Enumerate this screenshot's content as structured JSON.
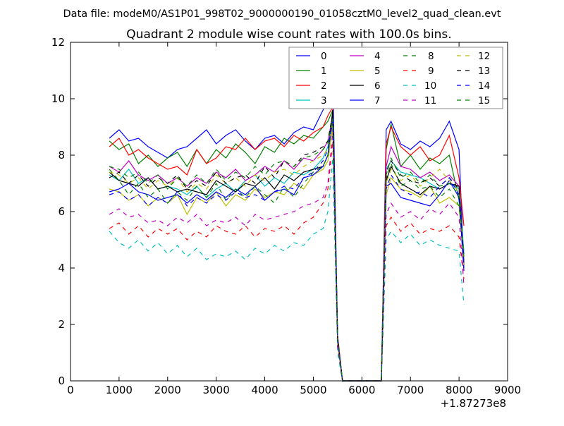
{
  "chart_data": {
    "type": "line",
    "suptitle": "Data file: modeM0/AS1P01_998T02_9000000190_01058cztM0_level2_quad_clean.evt",
    "title": "Quadrant 2 module wise count rates with 100.0s bins.",
    "xlabel": "",
    "ylabel": "",
    "x_offset_label": "+1.87273e8",
    "xlim": [
      0,
      9000
    ],
    "ylim": [
      0,
      12
    ],
    "xticks": [
      "0",
      "1000",
      "2000",
      "3000",
      "4000",
      "5000",
      "6000",
      "7000",
      "8000",
      "9000"
    ],
    "yticks": [
      "0",
      "2",
      "4",
      "6",
      "8",
      "10",
      "12"
    ],
    "grid": false,
    "legend_placement": "top-right",
    "legend_columns": 4,
    "x": [
      800,
      1000,
      1200,
      1400,
      1600,
      1800,
      2000,
      2200,
      2400,
      2600,
      2800,
      3000,
      3200,
      3400,
      3600,
      3800,
      4000,
      4200,
      4400,
      4600,
      4800,
      5000,
      5200,
      5300,
      5400,
      5500,
      5600,
      6300,
      6400,
      6500,
      6600,
      6800,
      7000,
      7200,
      7400,
      7600,
      7800,
      8000,
      8100
    ],
    "series": [
      {
        "name": "0",
        "color": "#0000ff",
        "style": "solid",
        "values": [
          8.6,
          8.9,
          8.5,
          8.6,
          8.3,
          8.1,
          7.9,
          8.2,
          8.3,
          8.6,
          8.9,
          8.4,
          8.7,
          8.9,
          8.5,
          8.2,
          8.6,
          8.7,
          8.4,
          8.8,
          9.0,
          8.9,
          9.6,
          10.0,
          10.8,
          1.6,
          0,
          0,
          0,
          8.9,
          9.2,
          8.4,
          8.2,
          8.5,
          8.3,
          8.6,
          9.2,
          8.2,
          4.0
        ]
      },
      {
        "name": "1",
        "color": "#008000",
        "style": "solid",
        "values": [
          8.5,
          8.2,
          8.4,
          7.7,
          8.0,
          7.6,
          7.9,
          8.1,
          7.6,
          8.2,
          7.7,
          8.2,
          7.9,
          8.4,
          8.1,
          7.7,
          8.3,
          8.1,
          8.6,
          8.4,
          8.7,
          8.6,
          9.0,
          9.2,
          9.6,
          1.5,
          0,
          0,
          0,
          8.2,
          9.1,
          7.6,
          8.0,
          7.5,
          7.9,
          7.7,
          8.0,
          6.4,
          4.5
        ]
      },
      {
        "name": "2",
        "color": "#ff0000",
        "style": "solid",
        "values": [
          8.3,
          8.6,
          8.0,
          8.2,
          7.9,
          7.7,
          7.5,
          7.6,
          7.3,
          8.2,
          7.7,
          7.9,
          8.3,
          8.2,
          8.6,
          8.2,
          8.5,
          8.6,
          8.3,
          8.7,
          8.5,
          8.8,
          9.0,
          9.4,
          9.7,
          1.6,
          0,
          0,
          0,
          8.4,
          9.0,
          8.3,
          8.0,
          8.3,
          7.8,
          8.0,
          8.7,
          7.2,
          5.5
        ]
      },
      {
        "name": "3",
        "color": "#00bfbf",
        "style": "solid",
        "values": [
          7.3,
          7.1,
          7.5,
          7.0,
          7.2,
          6.8,
          6.9,
          6.8,
          6.6,
          6.9,
          6.5,
          6.8,
          7.0,
          6.7,
          7.1,
          7.3,
          6.9,
          7.2,
          7.0,
          7.4,
          7.3,
          7.5,
          7.9,
          8.3,
          9.2,
          1.4,
          0,
          0,
          0,
          7.5,
          7.8,
          7.4,
          7.3,
          7.2,
          7.0,
          6.8,
          7.0,
          6.8,
          4.6
        ]
      },
      {
        "name": "4",
        "color": "#bf00bf",
        "style": "solid",
        "values": [
          7.6,
          7.4,
          7.8,
          7.3,
          7.1,
          7.3,
          7.0,
          7.2,
          6.9,
          7.2,
          7.0,
          7.4,
          7.2,
          7.5,
          7.1,
          7.3,
          7.6,
          7.4,
          7.8,
          7.5,
          7.9,
          7.8,
          8.2,
          8.5,
          9.4,
          1.5,
          0,
          0,
          0,
          7.6,
          8.3,
          7.6,
          7.5,
          7.2,
          7.4,
          7.1,
          7.3,
          6.9,
          4.3
        ]
      },
      {
        "name": "5",
        "color": "#bfbf00",
        "style": "solid",
        "values": [
          6.8,
          6.7,
          6.4,
          6.6,
          6.2,
          6.5,
          6.3,
          6.6,
          5.9,
          6.5,
          6.3,
          6.7,
          6.2,
          6.6,
          6.4,
          6.8,
          6.5,
          6.7,
          6.6,
          7.0,
          6.8,
          7.3,
          7.5,
          7.8,
          9.0,
          1.3,
          0,
          0,
          0,
          6.6,
          7.2,
          6.8,
          6.7,
          6.5,
          6.9,
          6.3,
          6.5,
          6.2,
          4.2
        ]
      },
      {
        "name": "6",
        "color": "#000000",
        "style": "solid",
        "values": [
          7.4,
          7.1,
          7.0,
          6.9,
          7.2,
          6.8,
          6.9,
          6.7,
          6.8,
          6.7,
          6.6,
          7.1,
          6.9,
          6.7,
          7.0,
          6.9,
          7.2,
          6.8,
          7.3,
          7.1,
          7.4,
          7.5,
          7.6,
          8.0,
          9.6,
          1.5,
          0,
          0,
          0,
          7.1,
          7.6,
          7.0,
          6.8,
          6.6,
          6.9,
          6.8,
          7.0,
          6.9,
          4.1
        ]
      },
      {
        "name": "7",
        "color": "#0000ff",
        "style": "solid",
        "values": [
          6.7,
          6.8,
          7.0,
          6.7,
          6.6,
          6.4,
          6.5,
          6.6,
          6.3,
          6.6,
          6.4,
          6.7,
          6.5,
          6.8,
          6.6,
          6.9,
          6.4,
          6.7,
          6.8,
          6.6,
          7.2,
          7.3,
          7.6,
          8.0,
          9.3,
          1.4,
          0,
          0,
          0,
          6.9,
          7.0,
          6.5,
          6.4,
          6.3,
          6.2,
          6.6,
          7.1,
          6.5,
          3.9
        ]
      },
      {
        "name": "8",
        "color": "#008000",
        "style": "dashed",
        "values": [
          7.5,
          7.1,
          6.6,
          7.0,
          6.5,
          6.8,
          6.3,
          6.7,
          6.4,
          6.9,
          6.5,
          7.0,
          6.4,
          6.8,
          6.5,
          6.9,
          6.6,
          6.3,
          6.9,
          6.5,
          7.0,
          7.4,
          7.6,
          8.0,
          9.3,
          1.5,
          0,
          0,
          0,
          7.2,
          7.7,
          6.9,
          7.1,
          6.8,
          6.9,
          6.5,
          6.8,
          6.2,
          4.5
        ]
      },
      {
        "name": "9",
        "color": "#ff0000",
        "style": "dashed",
        "values": [
          5.4,
          5.6,
          5.2,
          5.5,
          5.1,
          5.4,
          5.2,
          5.4,
          5.0,
          5.3,
          5.1,
          5.5,
          5.3,
          5.2,
          5.5,
          5.1,
          5.4,
          5.3,
          5.5,
          5.2,
          5.6,
          5.8,
          6.3,
          6.8,
          8.5,
          1.2,
          0,
          0,
          0,
          5.5,
          5.8,
          5.3,
          5.6,
          5.2,
          5.4,
          5.3,
          5.5,
          5.1,
          3.6
        ]
      },
      {
        "name": "10",
        "color": "#00bfbf",
        "style": "dashed",
        "values": [
          5.3,
          4.9,
          4.7,
          5.0,
          4.6,
          4.9,
          4.5,
          4.8,
          4.4,
          4.7,
          4.3,
          4.5,
          4.4,
          4.6,
          4.3,
          4.7,
          4.5,
          4.8,
          4.6,
          4.9,
          4.8,
          5.2,
          5.4,
          6.0,
          7.9,
          1.0,
          0,
          0,
          0,
          5.0,
          5.3,
          4.9,
          5.2,
          4.8,
          5.0,
          4.8,
          4.7,
          4.6,
          2.7
        ]
      },
      {
        "name": "11",
        "color": "#bf00bf",
        "style": "dashed",
        "values": [
          5.9,
          6.1,
          5.8,
          5.9,
          5.6,
          5.7,
          5.5,
          5.8,
          5.6,
          5.9,
          5.5,
          5.7,
          5.6,
          5.8,
          5.5,
          5.9,
          5.7,
          5.8,
          5.9,
          6.0,
          6.2,
          6.3,
          6.5,
          7.0,
          8.8,
          1.2,
          0,
          0,
          0,
          5.9,
          6.3,
          5.8,
          6.0,
          5.7,
          6.1,
          5.9,
          6.3,
          5.8,
          3.4
        ]
      },
      {
        "name": "12",
        "color": "#bfbf00",
        "style": "dashed",
        "values": [
          7.4,
          7.3,
          7.0,
          7.2,
          6.8,
          7.1,
          6.9,
          7.2,
          6.7,
          7.0,
          6.8,
          7.3,
          7.0,
          7.2,
          6.9,
          7.3,
          7.1,
          7.4,
          7.5,
          7.3,
          7.6,
          7.8,
          8.0,
          8.2,
          9.2,
          1.4,
          0,
          0,
          0,
          7.0,
          7.5,
          7.1,
          7.3,
          6.9,
          7.2,
          7.5,
          7.1,
          6.7,
          4.0
        ]
      },
      {
        "name": "13",
        "color": "#000000",
        "style": "dashed",
        "values": [
          7.2,
          7.4,
          7.0,
          7.3,
          6.9,
          7.2,
          7.0,
          7.3,
          6.8,
          7.1,
          6.9,
          7.4,
          7.0,
          7.2,
          7.3,
          7.0,
          7.6,
          7.2,
          7.8,
          7.6,
          8.0,
          8.1,
          8.3,
          8.5,
          9.5,
          1.5,
          0,
          0,
          0,
          7.4,
          7.8,
          7.3,
          7.1,
          7.0,
          7.2,
          6.9,
          7.2,
          6.8,
          4.2
        ]
      },
      {
        "name": "14",
        "color": "#0000ff",
        "style": "dashed",
        "values": [
          6.6,
          6.7,
          6.4,
          6.6,
          6.2,
          6.5,
          6.3,
          6.7,
          6.2,
          6.5,
          6.3,
          6.6,
          6.4,
          6.7,
          6.5,
          6.6,
          6.4,
          6.7,
          6.9,
          6.8,
          7.2,
          7.4,
          7.8,
          8.2,
          9.2,
          1.4,
          0,
          0,
          0,
          6.8,
          7.3,
          6.8,
          6.6,
          6.7,
          6.5,
          6.9,
          7.2,
          6.6,
          4.1
        ]
      },
      {
        "name": "15",
        "color": "#008000",
        "style": "dashed",
        "values": [
          7.6,
          7.5,
          7.2,
          7.4,
          7.0,
          7.3,
          6.8,
          7.2,
          6.9,
          7.3,
          7.0,
          7.5,
          7.1,
          7.4,
          7.2,
          7.6,
          7.3,
          7.7,
          7.8,
          7.6,
          7.9,
          8.0,
          8.2,
          8.4,
          9.3,
          1.5,
          0,
          0,
          0,
          7.3,
          7.9,
          7.2,
          7.4,
          7.0,
          7.3,
          6.9,
          7.0,
          6.6,
          4.4
        ]
      }
    ]
  }
}
